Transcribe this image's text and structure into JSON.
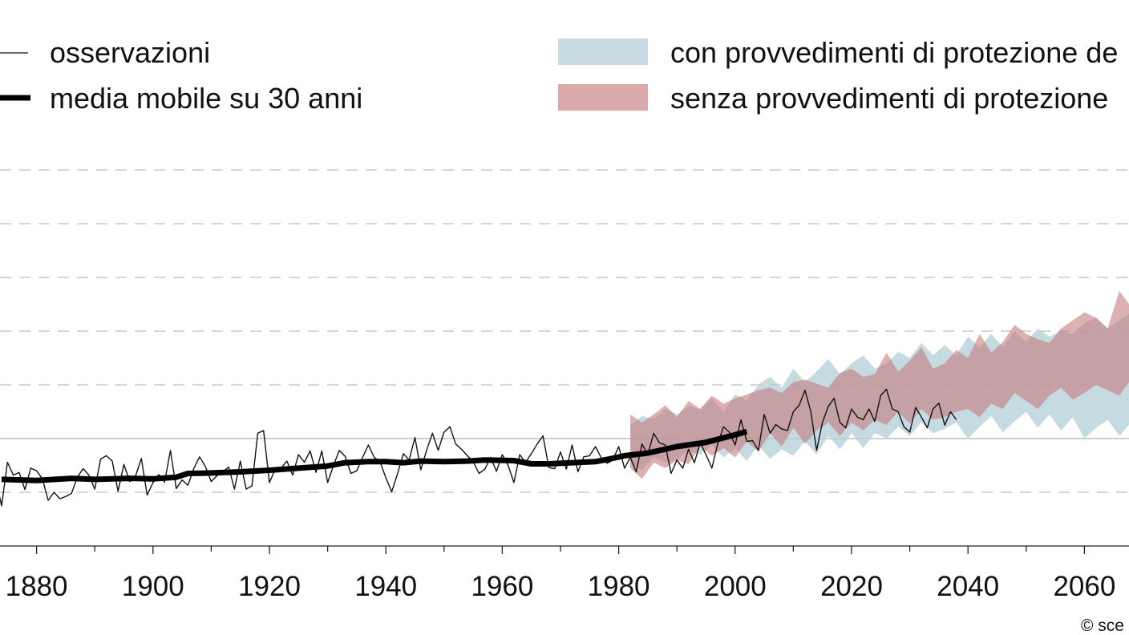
{
  "chart_data": {
    "type": "line",
    "title": "",
    "xlabel": "",
    "ylabel": "",
    "xlim": [
      1870,
      2078
    ],
    "ylim": [
      -2,
      6
    ],
    "grid": "horizontal dashed",
    "baseline_y": 0,
    "x_ticks": [
      1880,
      1900,
      1920,
      1940,
      1960,
      1980,
      2000,
      2020,
      2040,
      2060
    ],
    "legend": [
      {
        "label": "osservazioni",
        "style": "thin-line",
        "color": "#111111"
      },
      {
        "label": "media mobile su 30 anni",
        "style": "thick-line",
        "color": "#000000"
      },
      {
        "label": "con provvedimenti di protezione de",
        "style": "band",
        "color": "#b6cfd9"
      },
      {
        "label": "senza provvedimenti di protezione",
        "style": "band",
        "color": "#cc8a8c"
      }
    ],
    "series": [
      {
        "name": "osservazioni",
        "style": "thin-line",
        "x_start": 1870,
        "values": [
          -0.95,
          -0.65,
          -0.55,
          -0.78,
          -1.25,
          -0.44,
          -0.68,
          -0.63,
          -0.95,
          -0.55,
          -0.6,
          -0.75,
          -1.15,
          -1.0,
          -1.12,
          -1.08,
          -1.02,
          -0.72,
          -0.56,
          -0.68,
          -0.94,
          -0.38,
          -0.32,
          -0.42,
          -0.98,
          -0.48,
          -0.8,
          -0.7,
          -0.37,
          -1.05,
          -0.82,
          -0.67,
          -0.81,
          -0.22,
          -0.93,
          -0.77,
          -0.87,
          -0.56,
          -0.34,
          -0.52,
          -0.8,
          -0.69,
          -0.62,
          -0.53,
          -0.94,
          -0.42,
          -0.94,
          -0.88,
          0.1,
          0.15,
          -0.82,
          -0.57,
          -0.55,
          -0.42,
          -0.68,
          -0.3,
          -0.44,
          -0.23,
          -0.63,
          -0.23,
          -0.82,
          -0.5,
          -0.22,
          -0.33,
          -0.65,
          -0.6,
          -0.35,
          -0.12,
          -0.35,
          -0.43,
          -0.73,
          -0.99,
          -0.66,
          -0.28,
          -0.4,
          0.02,
          -0.58,
          -0.22,
          0.1,
          -0.22,
          0.12,
          0.22,
          -0.1,
          -0.2,
          -0.32,
          -0.43,
          -0.65,
          -0.57,
          -0.35,
          -0.61,
          -0.3,
          -0.5,
          -0.82,
          -0.3,
          -0.44,
          -0.28,
          -0.1,
          0.05,
          -0.54,
          -0.56,
          -0.25,
          -0.57,
          -0.12,
          -0.62,
          -0.34,
          -0.32,
          -0.15,
          -0.36,
          -0.46,
          -0.4,
          -0.15,
          -0.55,
          -0.35,
          -0.62,
          -0.1,
          -0.3,
          0.1,
          -0.08,
          -0.12,
          -0.65,
          -0.4,
          -0.55,
          -0.2,
          -0.45,
          -0.08,
          -0.3,
          -0.55,
          -0.1,
          0.22,
          0.12,
          -0.12,
          0.35,
          -0.05,
          -0.04,
          -0.22,
          0.45,
          0.1,
          0.26,
          0.18,
          0.15,
          0.5,
          0.62,
          0.9,
          0.5,
          -0.22,
          0.3,
          0.6,
          0.75,
          0.3,
          0.2,
          0.55,
          0.4,
          0.35,
          0.55,
          0.32,
          0.8,
          0.92,
          0.55,
          0.5,
          0.22,
          0.12,
          0.58,
          0.4,
          0.2,
          0.55,
          0.66,
          0.25,
          0.5,
          0.35
        ]
      },
      {
        "name": "media mobile su 30 anni",
        "style": "thick-line",
        "points": [
          [
            1874,
            -0.76
          ],
          [
            1880,
            -0.78
          ],
          [
            1886,
            -0.74
          ],
          [
            1890,
            -0.76
          ],
          [
            1896,
            -0.74
          ],
          [
            1900,
            -0.75
          ],
          [
            1904,
            -0.72
          ],
          [
            1906,
            -0.65
          ],
          [
            1910,
            -0.64
          ],
          [
            1915,
            -0.62
          ],
          [
            1920,
            -0.59
          ],
          [
            1925,
            -0.55
          ],
          [
            1930,
            -0.51
          ],
          [
            1933,
            -0.45
          ],
          [
            1937,
            -0.43
          ],
          [
            1940,
            -0.43
          ],
          [
            1943,
            -0.45
          ],
          [
            1946,
            -0.42
          ],
          [
            1950,
            -0.43
          ],
          [
            1954,
            -0.42
          ],
          [
            1957,
            -0.4
          ],
          [
            1962,
            -0.41
          ],
          [
            1965,
            -0.47
          ],
          [
            1968,
            -0.47
          ],
          [
            1972,
            -0.45
          ],
          [
            1976,
            -0.43
          ],
          [
            1978,
            -0.39
          ],
          [
            1981,
            -0.32
          ],
          [
            1985,
            -0.27
          ],
          [
            1990,
            -0.15
          ],
          [
            1995,
            -0.07
          ],
          [
            2000,
            0.07
          ],
          [
            2002,
            0.13
          ]
        ]
      },
      {
        "name": "con provvedimenti di protezione de",
        "style": "band",
        "x_start": 1982,
        "step": 2,
        "upper": [
          0.25,
          0.42,
          0.36,
          0.55,
          0.45,
          0.6,
          0.55,
          0.75,
          0.5,
          0.82,
          0.72,
          1.0,
          1.15,
          0.95,
          1.3,
          1.05,
          1.25,
          1.48,
          1.2,
          1.4,
          1.55,
          1.3,
          1.4,
          1.62,
          1.5,
          1.78,
          1.55,
          1.74,
          1.55,
          1.9,
          1.7,
          1.95,
          1.7,
          2.0,
          1.8,
          2.05,
          1.9,
          2.0,
          1.95,
          2.15,
          2.25,
          2.05,
          2.2,
          2.35,
          2.2,
          2.48,
          2.55,
          2.4,
          2.65,
          2.5
        ],
        "lower": [
          -0.5,
          -0.58,
          -0.35,
          -0.45,
          -0.4,
          -0.22,
          -0.3,
          -0.12,
          -0.35,
          -0.18,
          -0.42,
          -0.12,
          -0.38,
          -0.2,
          -0.32,
          -0.05,
          -0.3,
          0.05,
          -0.2,
          0.1,
          -0.18,
          0.1,
          0.0,
          0.22,
          0.05,
          0.3,
          0.1,
          0.18,
          0.3,
          0.0,
          0.22,
          0.42,
          0.12,
          0.32,
          0.5,
          0.2,
          0.45,
          0.15,
          0.4,
          0.0,
          0.2,
          0.35,
          0.05,
          0.3,
          0.45,
          0.2,
          0.5,
          0.35,
          0.6,
          0.55
        ]
      },
      {
        "name": "senza provvedimenti di protezione",
        "style": "band",
        "x_start": 1982,
        "step": 2,
        "upper": [
          0.45,
          0.3,
          0.45,
          0.62,
          0.4,
          0.7,
          0.55,
          0.8,
          0.65,
          0.75,
          0.82,
          0.9,
          0.95,
          0.85,
          1.05,
          1.1,
          1.02,
          0.95,
          1.22,
          1.3,
          1.15,
          1.2,
          1.6,
          1.25,
          1.45,
          1.7,
          1.3,
          1.4,
          1.65,
          1.5,
          1.95,
          1.6,
          1.8,
          2.12,
          1.95,
          1.85,
          1.78,
          2.05,
          2.2,
          2.35,
          2.25,
          2.05,
          2.75,
          2.45,
          2.2,
          2.6,
          2.35,
          2.7,
          2.5,
          2.88
        ],
        "lower": [
          -0.55,
          -0.75,
          -0.45,
          -0.55,
          -0.4,
          -0.48,
          -0.15,
          -0.32,
          -0.18,
          -0.35,
          -0.05,
          -0.25,
          0.1,
          -0.15,
          0.2,
          -0.1,
          0.15,
          0.3,
          0.05,
          0.3,
          0.15,
          0.35,
          0.25,
          0.5,
          0.28,
          0.55,
          0.35,
          0.4,
          0.5,
          0.55,
          0.4,
          0.65,
          0.55,
          0.85,
          0.7,
          0.55,
          0.8,
          0.95,
          0.72,
          0.85,
          1.0,
          0.9,
          0.8,
          1.1,
          1.2,
          1.0,
          1.1,
          1.2,
          1.2,
          1.4
        ]
      }
    ]
  },
  "credit": "© sce"
}
